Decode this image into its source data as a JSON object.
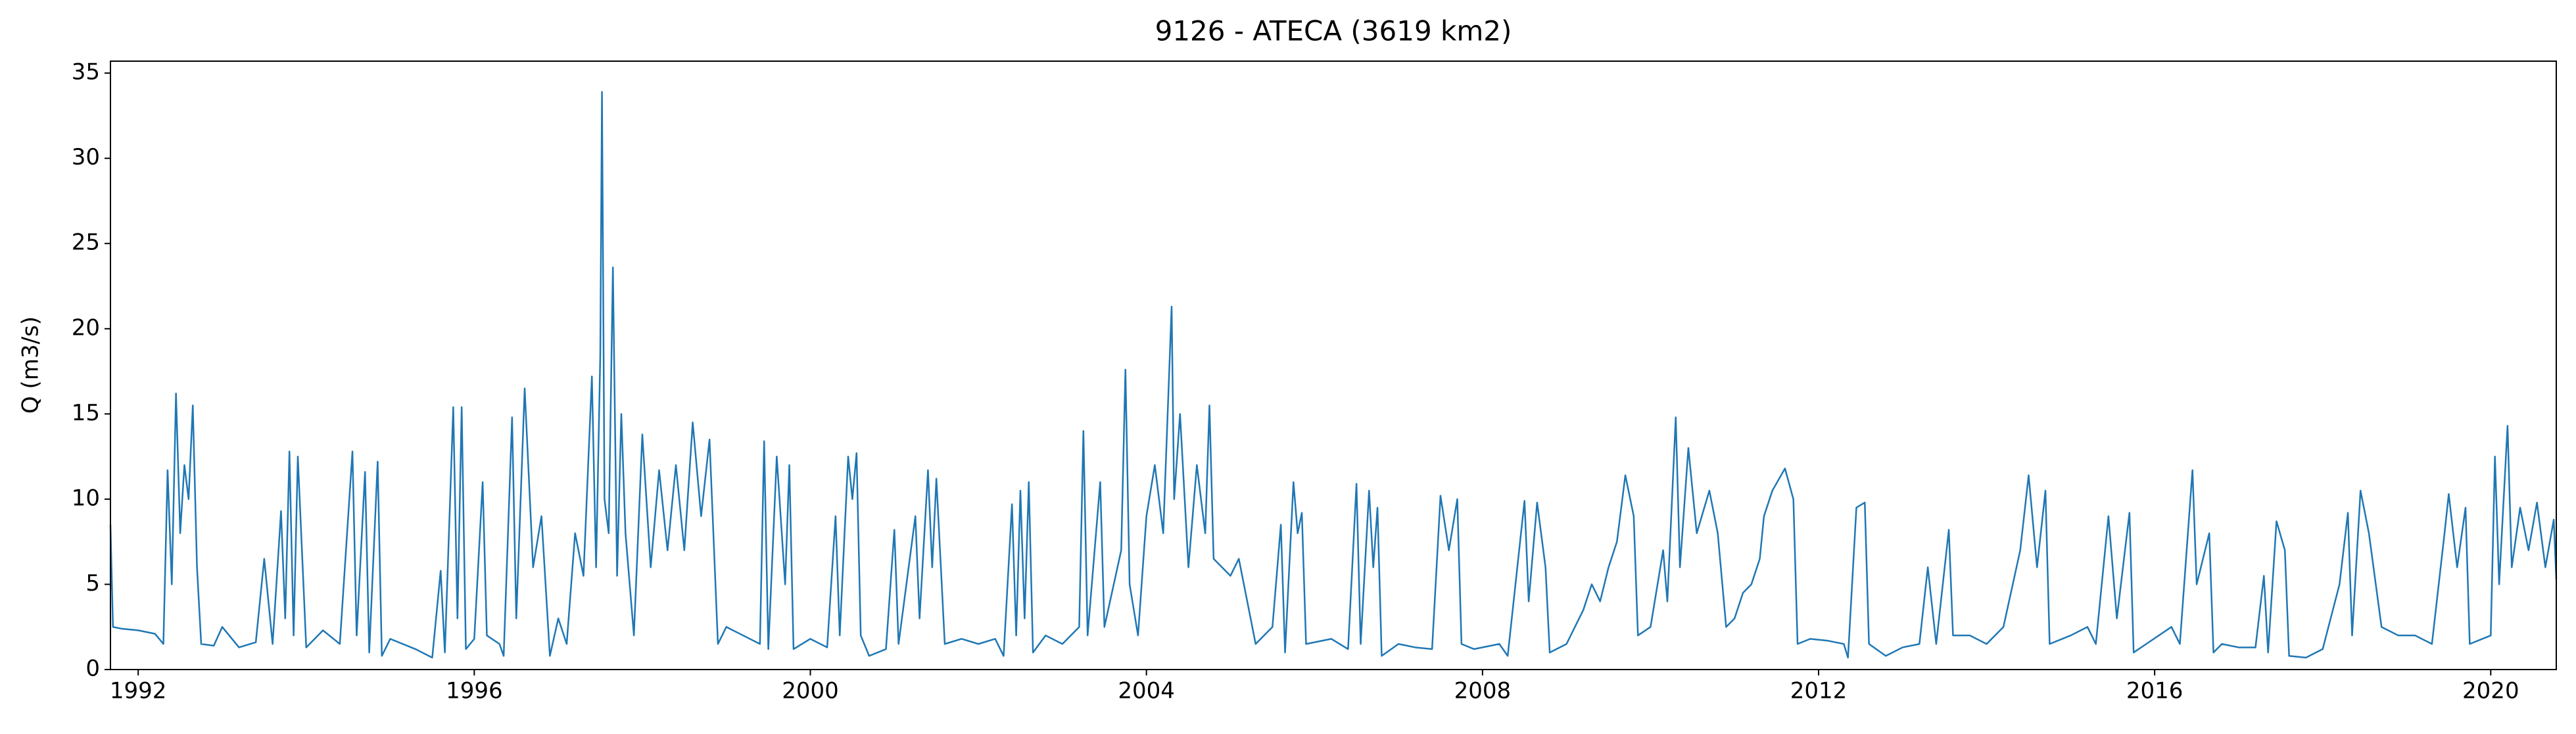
{
  "chart_data": {
    "type": "line",
    "title": "9126 - ATECA (3619 km2)",
    "ylabel": "Q (m3/s)",
    "color": "#1f77b4",
    "grid": false,
    "xlim": [
      1991.67,
      2020.78
    ],
    "xticks": [
      1992,
      1996,
      2000,
      2004,
      2008,
      2012,
      2016,
      2020
    ],
    "ylim": [
      0,
      35.7
    ],
    "yticks": [
      0,
      5,
      10,
      15,
      20,
      25,
      30,
      35
    ],
    "x": [
      1991.67,
      1991.7,
      1991.8,
      1992.0,
      1992.2,
      1992.3,
      1992.35,
      1992.4,
      1992.45,
      1992.5,
      1992.55,
      1992.6,
      1992.65,
      1992.7,
      1992.75,
      1992.9,
      1993.0,
      1993.2,
      1993.4,
      1993.5,
      1993.6,
      1993.7,
      1993.75,
      1993.8,
      1993.85,
      1993.9,
      1994.0,
      1994.2,
      1994.4,
      1994.55,
      1994.6,
      1994.7,
      1994.75,
      1994.85,
      1994.9,
      1995.0,
      1995.3,
      1995.5,
      1995.6,
      1995.65,
      1995.75,
      1995.8,
      1995.85,
      1995.9,
      1996.0,
      1996.1,
      1996.15,
      1996.3,
      1996.35,
      1996.45,
      1996.5,
      1996.6,
      1996.7,
      1996.8,
      1996.9,
      1997.0,
      1997.1,
      1997.2,
      1997.3,
      1997.4,
      1997.45,
      1997.5,
      1997.52,
      1997.55,
      1997.6,
      1997.65,
      1997.7,
      1997.75,
      1997.8,
      1997.9,
      1998.0,
      1998.1,
      1998.2,
      1998.3,
      1998.4,
      1998.5,
      1998.6,
      1998.7,
      1998.8,
      1998.9,
      1999.0,
      1999.2,
      1999.4,
      1999.45,
      1999.5,
      1999.6,
      1999.7,
      1999.75,
      1999.8,
      2000.0,
      2000.2,
      2000.3,
      2000.35,
      2000.45,
      2000.5,
      2000.55,
      2000.6,
      2000.7,
      2000.9,
      2001.0,
      2001.05,
      2001.25,
      2001.3,
      2001.4,
      2001.45,
      2001.5,
      2001.6,
      2001.8,
      2002.0,
      2002.2,
      2002.3,
      2002.4,
      2002.45,
      2002.5,
      2002.55,
      2002.6,
      2002.65,
      2002.8,
      2003.0,
      2003.2,
      2003.25,
      2003.3,
      2003.45,
      2003.5,
      2003.7,
      2003.75,
      2003.8,
      2003.9,
      2004.0,
      2004.1,
      2004.2,
      2004.3,
      2004.33,
      2004.4,
      2004.5,
      2004.6,
      2004.7,
      2004.75,
      2004.8,
      2005.0,
      2005.1,
      2005.3,
      2005.5,
      2005.6,
      2005.65,
      2005.75,
      2005.8,
      2005.85,
      2005.9,
      2006.2,
      2006.4,
      2006.5,
      2006.55,
      2006.65,
      2006.7,
      2006.75,
      2006.8,
      2007.0,
      2007.2,
      2007.4,
      2007.5,
      2007.6,
      2007.7,
      2007.75,
      2007.9,
      2008.2,
      2008.3,
      2008.5,
      2008.55,
      2008.65,
      2008.75,
      2008.8,
      2009.0,
      2009.2,
      2009.3,
      2009.4,
      2009.5,
      2009.6,
      2009.7,
      2009.8,
      2009.85,
      2010.0,
      2010.15,
      2010.2,
      2010.3,
      2010.35,
      2010.45,
      2010.55,
      2010.7,
      2010.8,
      2010.9,
      2011.0,
      2011.1,
      2011.2,
      2011.3,
      2011.35,
      2011.45,
      2011.6,
      2011.7,
      2011.75,
      2011.9,
      2012.1,
      2012.3,
      2012.35,
      2012.45,
      2012.55,
      2012.6,
      2012.8,
      2013.0,
      2013.2,
      2013.3,
      2013.4,
      2013.55,
      2013.6,
      2013.8,
      2014.0,
      2014.2,
      2014.4,
      2014.5,
      2014.6,
      2014.7,
      2014.75,
      2015.0,
      2015.2,
      2015.3,
      2015.45,
      2015.55,
      2015.7,
      2015.75,
      2015.9,
      2016.2,
      2016.3,
      2016.45,
      2016.5,
      2016.65,
      2016.7,
      2016.8,
      2017.0,
      2017.2,
      2017.3,
      2017.35,
      2017.45,
      2017.55,
      2017.6,
      2017.8,
      2018.0,
      2018.2,
      2018.3,
      2018.35,
      2018.45,
      2018.55,
      2018.7,
      2018.9,
      2019.1,
      2019.3,
      2019.45,
      2019.5,
      2019.6,
      2019.7,
      2019.75,
      2020.0,
      2020.05,
      2020.1,
      2020.2,
      2020.25,
      2020.35,
      2020.45,
      2020.55,
      2020.65,
      2020.75,
      2020.78
    ],
    "values": [
      8.5,
      2.5,
      2.4,
      2.3,
      2.1,
      1.5,
      11.7,
      5,
      16.2,
      8,
      12,
      10,
      15.5,
      6,
      1.5,
      1.4,
      2.5,
      1.3,
      1.6,
      6.5,
      1.5,
      9.3,
      3,
      12.8,
      2,
      12.5,
      1.3,
      2.3,
      1.5,
      12.8,
      2,
      11.6,
      1,
      12.2,
      0.8,
      1.8,
      1.2,
      0.7,
      5.8,
      1,
      15.4,
      3,
      15.4,
      1.2,
      1.8,
      11,
      2,
      1.5,
      0.8,
      14.8,
      3,
      16.5,
      6,
      9,
      0.8,
      3,
      1.5,
      8,
      5.5,
      17.2,
      6,
      18.5,
      33.9,
      10,
      8,
      23.6,
      5.5,
      15,
      8,
      2,
      13.8,
      6,
      11.7,
      7,
      12,
      7,
      14.5,
      9,
      13.5,
      1.5,
      2.5,
      2,
      1.5,
      13.4,
      1.2,
      12.5,
      5,
      12,
      1.2,
      1.8,
      1.3,
      9,
      2,
      12.5,
      10,
      12.7,
      2,
      0.8,
      1.2,
      8.2,
      1.5,
      9,
      3,
      11.7,
      6,
      11.2,
      1.5,
      1.8,
      1.5,
      1.8,
      0.8,
      9.7,
      2,
      10.5,
      3,
      11,
      1,
      2,
      1.5,
      2.5,
      14,
      2,
      11,
      2.5,
      7,
      17.6,
      5,
      2,
      9,
      12,
      8,
      21.3,
      10,
      15,
      6,
      12,
      8,
      15.5,
      6.5,
      5.5,
      6.5,
      1.5,
      2.5,
      8.5,
      1,
      11,
      8,
      9.2,
      1.5,
      1.8,
      1.2,
      10.9,
      1.5,
      10.5,
      6,
      9.5,
      0.8,
      1.5,
      1.3,
      1.2,
      10.2,
      7,
      10,
      1.5,
      1.2,
      1.5,
      0.8,
      9.9,
      4,
      9.8,
      6,
      1,
      1.5,
      3.5,
      5,
      4,
      6,
      7.5,
      11.4,
      9,
      2,
      2.5,
      7,
      4,
      14.8,
      6,
      13,
      8,
      10.5,
      8,
      2.5,
      3,
      4.5,
      5,
      6.5,
      9,
      10.5,
      11.8,
      10,
      1.5,
      1.8,
      1.7,
      1.5,
      0.7,
      9.5,
      9.8,
      1.5,
      0.8,
      1.3,
      1.5,
      6,
      1.5,
      8.2,
      2,
      2,
      1.5,
      2.5,
      7,
      11.4,
      6,
      10.5,
      1.5,
      2,
      2.5,
      1.5,
      9,
      3,
      9.2,
      1,
      1.5,
      2.5,
      1.5,
      11.7,
      5,
      8,
      1,
      1.5,
      1.3,
      1.3,
      5.5,
      1,
      8.7,
      7,
      0.8,
      0.7,
      1.2,
      5,
      9.2,
      2,
      10.5,
      8,
      2.5,
      2,
      2,
      1.5,
      8,
      10.3,
      6,
      9.5,
      1.5,
      2,
      12.5,
      5,
      14.3,
      6,
      9.5,
      7,
      9.8,
      6,
      8.8,
      5.3
    ]
  }
}
